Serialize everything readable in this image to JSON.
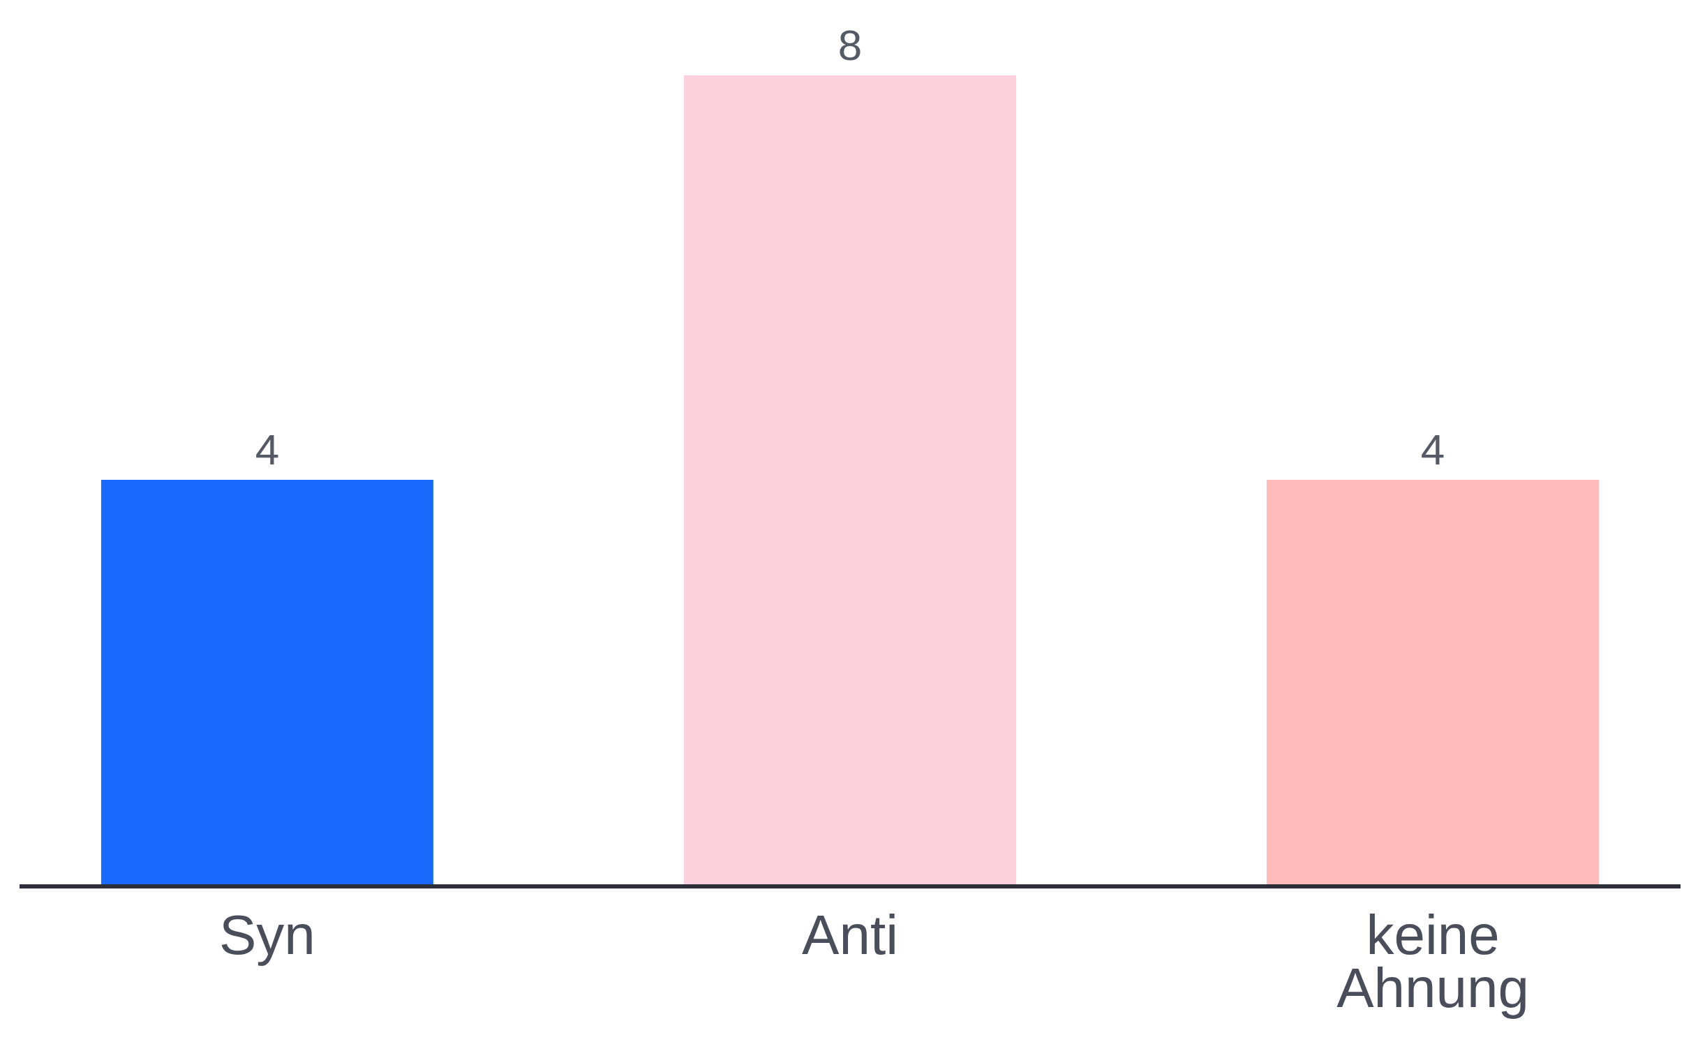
{
  "chart_data": {
    "type": "bar",
    "categories": [
      "Syn",
      "Anti",
      "keine Ahnung"
    ],
    "values": [
      4,
      8,
      4
    ],
    "colors": [
      "#1a69ff",
      "#fcd0dd",
      "#fdbbb9"
    ],
    "data_labels": true
  }
}
